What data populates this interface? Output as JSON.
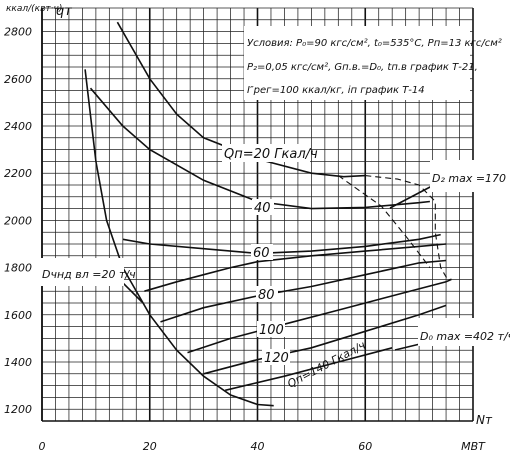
{
  "chart_data": {
    "type": "line",
    "title": "",
    "ylabel_unit": "ккал/(квт·ч)",
    "ylabel_symbol": "qт",
    "xlabel_symbol": "Nт",
    "xlabel_unit": "МВТ",
    "xlim": [
      0,
      80
    ],
    "ylim": [
      1150,
      2900
    ],
    "xticks": [
      "0",
      "20",
      "40",
      "60",
      "МВТ"
    ],
    "yticks": [
      "1200",
      "1400",
      "1600",
      "1800",
      "2000",
      "2200",
      "2400",
      "2600",
      "2800"
    ],
    "conditions": [
      "Условия: P₀=90 кгс/см², t₀=535°C, Pп=13 кгс/см²",
      "P₂=0,05 кгс/см², Gп.в.=D₀, tп.в график Т-21,",
      "I″рег=100 ккал/кг, iп график Т-14"
    ],
    "annotations": {
      "q20": "Qп=20 Гкал/ч",
      "q40": "40",
      "q60": "60",
      "q80": "80",
      "q100": "100",
      "q120": "120",
      "q140": "Qп=140 Гкал/ч",
      "d2max": "D₂ max =170 т/ч",
      "d0max": "D₀ max =402 т/ч",
      "dchnd": "Dчнд вл =20 т/ч"
    },
    "series": [
      {
        "values": [
          [
            14,
            2840
          ],
          [
            20,
            2600
          ],
          [
            25,
            2450
          ],
          [
            30,
            2350
          ],
          [
            40,
            2260
          ],
          [
            50,
            2200
          ],
          [
            56,
            2185
          ],
          [
            60,
            2190
          ]
        ]
      },
      {
        "values": [
          [
            9,
            2560
          ],
          [
            15,
            2400
          ],
          [
            20,
            2300
          ],
          [
            30,
            2170
          ],
          [
            40,
            2080
          ],
          [
            50,
            2050
          ],
          [
            60,
            2055
          ],
          [
            70,
            2075
          ],
          [
            72,
            2080
          ]
        ]
      },
      {
        "values": [
          [
            15,
            1920
          ],
          [
            20,
            1900
          ],
          [
            30,
            1880
          ],
          [
            40,
            1860
          ],
          [
            50,
            1870
          ],
          [
            60,
            1890
          ],
          [
            70,
            1920
          ],
          [
            74,
            1940
          ]
        ]
      },
      {
        "values": [
          [
            19,
            1700
          ],
          [
            25,
            1740
          ],
          [
            30,
            1770
          ],
          [
            35,
            1800
          ],
          [
            40,
            1825
          ],
          [
            50,
            1850
          ],
          [
            60,
            1870
          ],
          [
            70,
            1890
          ],
          [
            75,
            1900
          ]
        ]
      },
      {
        "values": [
          [
            22,
            1570
          ],
          [
            30,
            1630
          ],
          [
            40,
            1680
          ],
          [
            50,
            1720
          ],
          [
            60,
            1770
          ],
          [
            70,
            1820
          ],
          [
            75,
            1830
          ]
        ]
      },
      {
        "values": [
          [
            27,
            1440
          ],
          [
            35,
            1500
          ],
          [
            45,
            1560
          ],
          [
            55,
            1620
          ],
          [
            65,
            1680
          ],
          [
            75,
            1740
          ],
          [
            76,
            1750
          ]
        ]
      },
      {
        "values": [
          [
            30,
            1350
          ],
          [
            40,
            1410
          ],
          [
            50,
            1460
          ],
          [
            60,
            1530
          ],
          [
            70,
            1600
          ],
          [
            75,
            1640
          ]
        ]
      },
      {
        "values": [
          [
            34,
            1280
          ],
          [
            45,
            1340
          ],
          [
            55,
            1400
          ],
          [
            65,
            1460
          ]
        ]
      },
      {
        "values": [
          [
            8,
            2640
          ],
          [
            10,
            2250
          ],
          [
            12,
            2000
          ],
          [
            15,
            1800
          ],
          [
            20,
            1600
          ],
          [
            25,
            1450
          ],
          [
            30,
            1340
          ],
          [
            35,
            1260
          ],
          [
            40,
            1220
          ],
          [
            43,
            1215
          ]
        ]
      }
    ],
    "dashed": [
      {
        "values": [
          [
            60,
            2190
          ],
          [
            66,
            2175
          ],
          [
            70,
            2150
          ],
          [
            73,
            2080
          ],
          [
            73,
            1950
          ],
          [
            74,
            1800
          ],
          [
            75,
            1760
          ],
          [
            76,
            1750
          ]
        ]
      },
      {
        "values": [
          [
            55,
            2190
          ],
          [
            63,
            2060
          ],
          [
            68,
            1920
          ],
          [
            72,
            1800
          ]
        ]
      }
    ]
  }
}
